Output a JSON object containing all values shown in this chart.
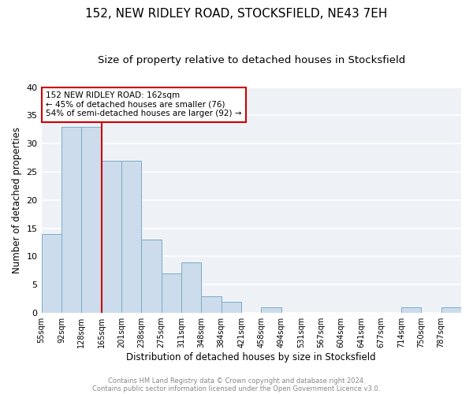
{
  "title": "152, NEW RIDLEY ROAD, STOCKSFIELD, NE43 7EH",
  "subtitle": "Size of property relative to detached houses in Stocksfield",
  "xlabel": "Distribution of detached houses by size in Stocksfield",
  "ylabel": "Number of detached properties",
  "bin_labels": [
    "55sqm",
    "92sqm",
    "128sqm",
    "165sqm",
    "201sqm",
    "238sqm",
    "275sqm",
    "311sqm",
    "348sqm",
    "384sqm",
    "421sqm",
    "458sqm",
    "494sqm",
    "531sqm",
    "567sqm",
    "604sqm",
    "641sqm",
    "677sqm",
    "714sqm",
    "750sqm",
    "787sqm"
  ],
  "bar_heights": [
    14,
    33,
    33,
    27,
    27,
    13,
    7,
    9,
    3,
    2,
    0,
    1,
    0,
    0,
    0,
    0,
    0,
    0,
    1,
    0,
    1
  ],
  "bar_color": "#ccdcec",
  "bar_edge_color": "#7baac8",
  "vline_x": 3,
  "vline_color": "#cc0000",
  "ylim": [
    0,
    40
  ],
  "annotation_title": "152 NEW RIDLEY ROAD: 162sqm",
  "annotation_line1": "← 45% of detached houses are smaller (76)",
  "annotation_line2": "54% of semi-detached houses are larger (92) →",
  "annotation_box_color": "#ffffff",
  "annotation_box_edge": "#cc0000",
  "footer1": "Contains HM Land Registry data © Crown copyright and database right 2024.",
  "footer2": "Contains public sector information licensed under the Open Government Licence v3.0.",
  "bg_color": "#ffffff",
  "plot_bg_color": "#eef2f7",
  "title_fontsize": 11,
  "subtitle_fontsize": 9.5,
  "footer_color": "#888888"
}
